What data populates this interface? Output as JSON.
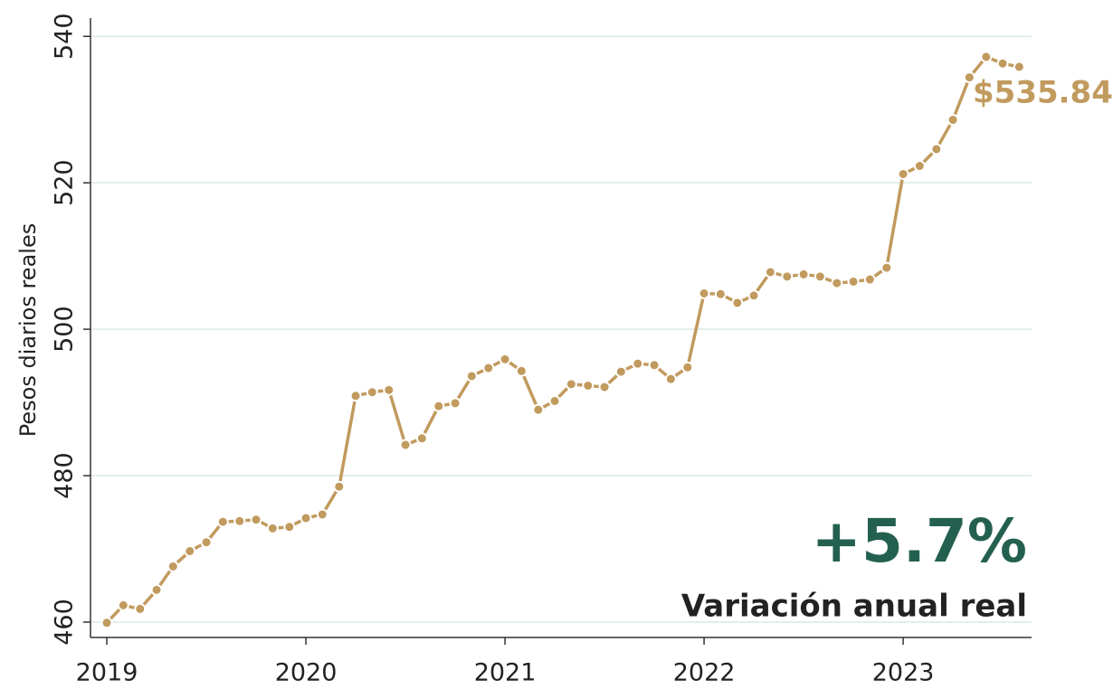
{
  "chart_data": {
    "type": "line",
    "y_label": "Pesos diarios reales",
    "x": [
      2019,
      2019.083,
      2019.167,
      2019.25,
      2019.333,
      2019.417,
      2019.5,
      2019.583,
      2019.667,
      2019.75,
      2019.833,
      2019.917,
      2020,
      2020.083,
      2020.167,
      2020.25,
      2020.333,
      2020.417,
      2020.5,
      2020.583,
      2020.667,
      2020.75,
      2020.833,
      2020.917,
      2021,
      2021.083,
      2021.167,
      2021.25,
      2021.333,
      2021.417,
      2021.5,
      2021.583,
      2021.667,
      2021.75,
      2021.833,
      2021.917,
      2022,
      2022.083,
      2022.167,
      2022.25,
      2022.333,
      2022.417,
      2022.5,
      2022.583,
      2022.667,
      2022.75,
      2022.833,
      2022.917,
      2023,
      2023.083,
      2023.167,
      2023.25,
      2023.333,
      2023.417,
      2023.5,
      2023.583
    ],
    "series": [
      {
        "name": "Pesos diarios reales",
        "color": "#c19a5e",
        "values": [
          459.9,
          462.3,
          461.8,
          464.4,
          467.6,
          469.7,
          470.9,
          473.7,
          473.8,
          474.0,
          472.8,
          473.0,
          474.2,
          474.7,
          478.5,
          490.9,
          491.4,
          491.7,
          484.2,
          485.1,
          489.5,
          489.9,
          493.6,
          494.7,
          495.9,
          494.3,
          489.0,
          490.2,
          492.5,
          492.3,
          492.1,
          494.2,
          495.3,
          495.1,
          493.2,
          494.8,
          504.9,
          504.8,
          503.6,
          504.6,
          507.8,
          507.2,
          507.5,
          507.2,
          506.3,
          506.5,
          506.8,
          508.4,
          521.2,
          522.3,
          524.6,
          528.6,
          534.4,
          537.2,
          536.3,
          535.84
        ]
      }
    ],
    "last_value": 535.84,
    "last_value_label": "$535.84",
    "highlight": "+5.7%",
    "highlight_color": "#24604f",
    "highlight_caption": "Variación anual real",
    "xlim": [
      2018.918,
      2023.645
    ],
    "xticks": [
      2019,
      2020,
      2021,
      2022,
      2023
    ],
    "ylim": [
      457.9,
      542.5
    ],
    "yticks": [
      460,
      480,
      500,
      520,
      540
    ],
    "grid": true
  }
}
